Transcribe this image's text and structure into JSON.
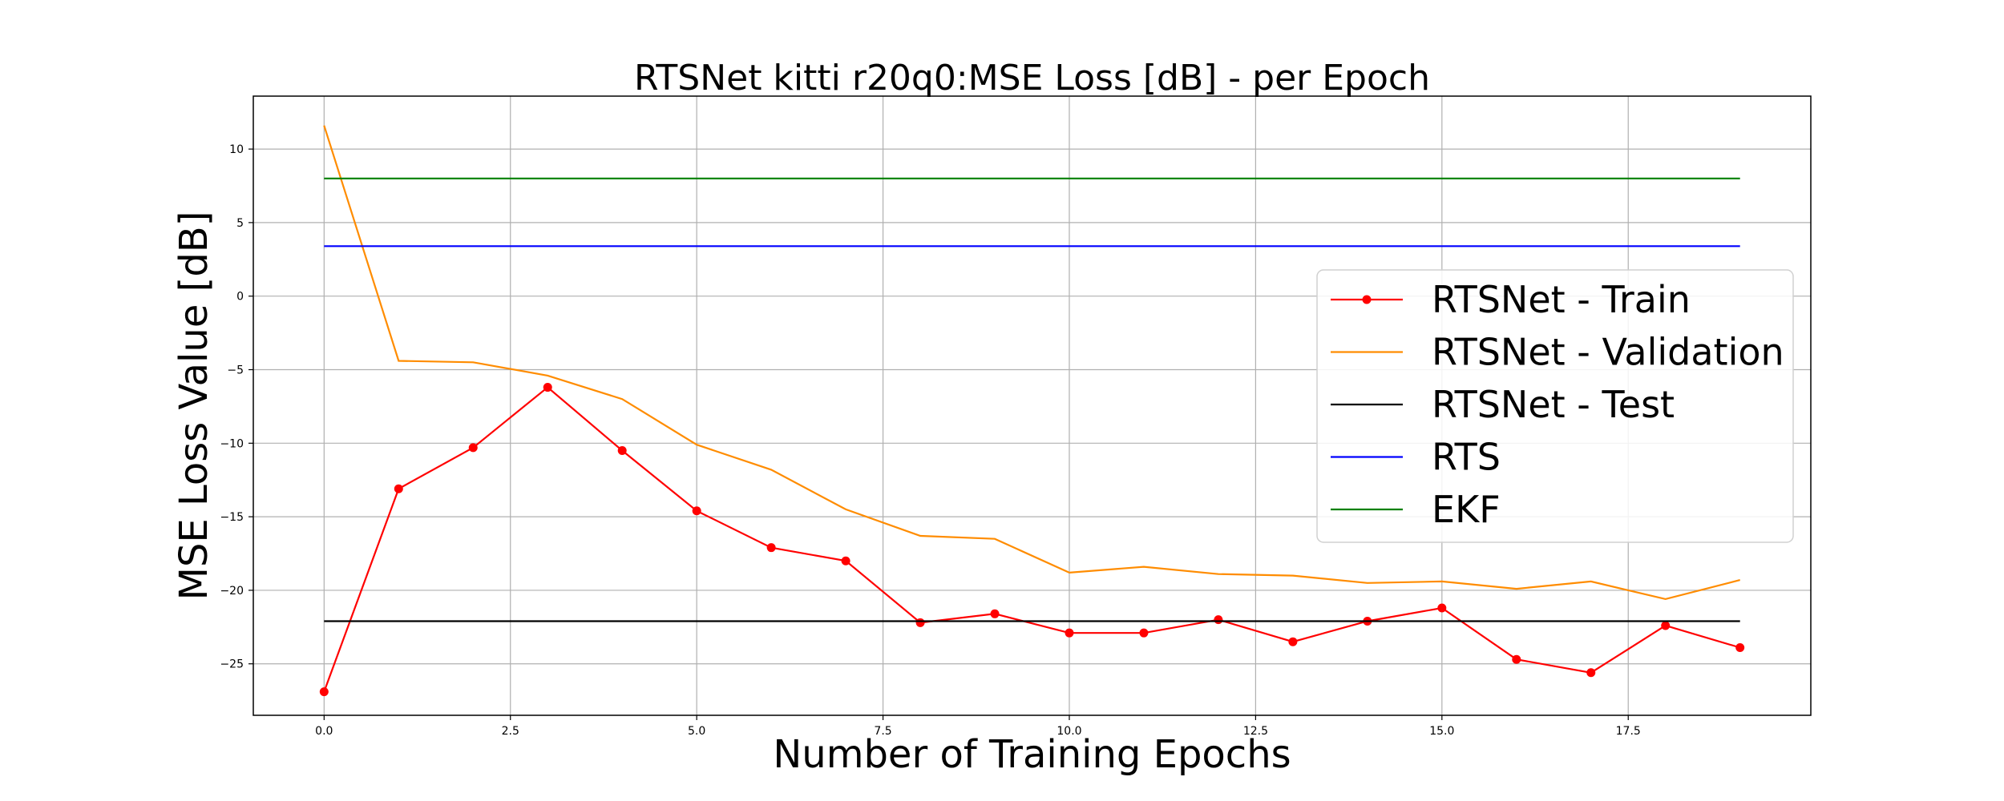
{
  "chart_data": {
    "type": "line",
    "title": "RTSNet kitti r20q0:MSE Loss [dB] - per Epoch",
    "xlabel": "Number of Training Epochs",
    "ylabel": "MSE Loss Value [dB]",
    "xlim": [
      -0.95,
      19.95
    ],
    "ylim": [
      -28.5,
      13.6
    ],
    "xticks": [
      0.0,
      2.5,
      5.0,
      7.5,
      10.0,
      12.5,
      15.0,
      17.5
    ],
    "xtick_labels": [
      "0.0",
      "2.5",
      "5.0",
      "7.5",
      "10.0",
      "12.5",
      "15.0",
      "17.5"
    ],
    "yticks": [
      10,
      5,
      0,
      -5,
      -10,
      -15,
      -20,
      -25
    ],
    "ytick_labels": [
      "10",
      "5",
      "0",
      "−5",
      "−10",
      "−15",
      "−20",
      "−25"
    ],
    "grid": true,
    "legend_position": "center-right",
    "series": [
      {
        "name": "RTSNet - Train",
        "color": "#ff0000",
        "marker": true,
        "x": [
          0,
          1,
          2,
          3,
          4,
          5,
          6,
          7,
          8,
          9,
          10,
          11,
          12,
          13,
          14,
          15,
          16,
          17,
          18,
          19
        ],
        "values": [
          -26.9,
          -13.1,
          -10.3,
          -6.2,
          -10.5,
          -14.6,
          -17.1,
          -18.0,
          -22.2,
          -21.6,
          -22.9,
          -22.9,
          -22.0,
          -23.5,
          -22.1,
          -21.2,
          -24.7,
          -25.6,
          -22.4,
          -23.9
        ]
      },
      {
        "name": "RTSNet - Validation",
        "color": "#ff8c00",
        "marker": false,
        "x": [
          0,
          1,
          2,
          3,
          4,
          5,
          6,
          7,
          8,
          9,
          10,
          11,
          12,
          13,
          14,
          15,
          16,
          17,
          18,
          19
        ],
        "values": [
          11.6,
          -4.4,
          -4.5,
          -5.4,
          -7.0,
          -10.1,
          -11.8,
          -14.5,
          -16.3,
          -16.5,
          -18.8,
          -18.4,
          -18.9,
          -19.0,
          -19.5,
          -19.4,
          -19.9,
          -19.4,
          -20.6,
          -19.3
        ]
      },
      {
        "name": "RTSNet - Test",
        "color": "#000000",
        "marker": false,
        "x": [
          0,
          19
        ],
        "values": [
          -22.1,
          -22.1
        ]
      },
      {
        "name": "RTS",
        "color": "#0000ff",
        "marker": false,
        "x": [
          0,
          19
        ],
        "values": [
          3.4,
          3.4
        ]
      },
      {
        "name": "EKF",
        "color": "#008000",
        "marker": false,
        "x": [
          0,
          19
        ],
        "values": [
          8.0,
          8.0
        ]
      }
    ]
  }
}
